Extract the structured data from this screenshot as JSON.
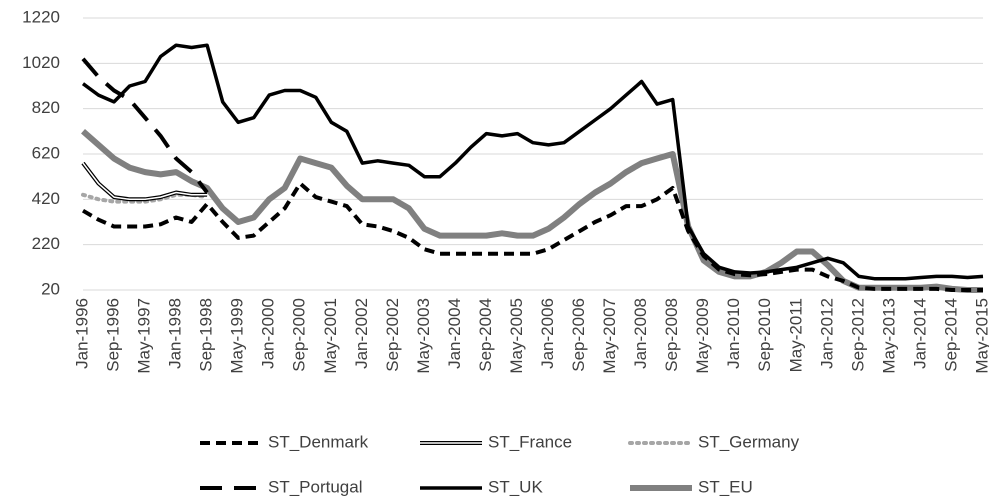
{
  "chart_data": {
    "type": "line",
    "categories": [
      "Jan-1996",
      null,
      "Sep-1996",
      null,
      "May-1997",
      null,
      "Jan-1998",
      null,
      "Sep-1998",
      null,
      "May-1999",
      null,
      "Jan-2000",
      null,
      "Sep-2000",
      null,
      "May-2001",
      null,
      "Jan-2002",
      null,
      "Sep-2002",
      null,
      "May-2003",
      null,
      "Jan-2004",
      null,
      "Sep-2004",
      null,
      "May-2005",
      null,
      "Jan-2006",
      null,
      "Sep-2006",
      null,
      "May-2007",
      null,
      "Jan-2008",
      null,
      "Sep-2008",
      null,
      "May-2009",
      null,
      "Jan-2010",
      null,
      "Sep-2010",
      null,
      "May-2011",
      null,
      "Jan-2012",
      null,
      "Sep-2012",
      null,
      "May-2013",
      null,
      "Jan-2014",
      null,
      "Sep-2014",
      null,
      "May-2015"
    ],
    "ylim": [
      20,
      1220
    ],
    "yticks": [
      20,
      220,
      420,
      620,
      820,
      1020,
      1220
    ],
    "grid": true,
    "legend": "bottom",
    "series": [
      {
        "name": "ST_Denmark",
        "color": "#000000",
        "style": "short-dash",
        "values": [
          370,
          330,
          300,
          300,
          300,
          310,
          340,
          320,
          400,
          320,
          250,
          260,
          320,
          380,
          490,
          430,
          410,
          390,
          310,
          300,
          280,
          250,
          200,
          180,
          180,
          180,
          180,
          180,
          180,
          180,
          200,
          240,
          280,
          320,
          350,
          390,
          390,
          420,
          470,
          280,
          170,
          110,
          90,
          85,
          90,
          100,
          110,
          110,
          80,
          60,
          30,
          25,
          25,
          25,
          25,
          25,
          20,
          20,
          20
        ]
      },
      {
        "name": "ST_France",
        "color": "#000000",
        "style": "double",
        "values": [
          580,
          490,
          430,
          420,
          420,
          430,
          450,
          440,
          440,
          null,
          null,
          null,
          null,
          null,
          null,
          null,
          null,
          null,
          null,
          null,
          null,
          null,
          null,
          null,
          null,
          null,
          null,
          null,
          null,
          null,
          null,
          null,
          null,
          null,
          null,
          null,
          null,
          null,
          null,
          null,
          null,
          null,
          null,
          null,
          null,
          null,
          null,
          null,
          null,
          null,
          null,
          null,
          null,
          null,
          null,
          null,
          null,
          null,
          null
        ]
      },
      {
        "name": "ST_Germany",
        "color": "#a6a6a6",
        "style": "dotted",
        "values": [
          440,
          420,
          410,
          410,
          410,
          420,
          440,
          440,
          430,
          null,
          null,
          null,
          null,
          null,
          null,
          null,
          null,
          null,
          null,
          null,
          null,
          null,
          null,
          null,
          null,
          null,
          null,
          null,
          null,
          null,
          null,
          null,
          null,
          null,
          null,
          null,
          null,
          null,
          null,
          null,
          null,
          null,
          null,
          null,
          null,
          null,
          null,
          null,
          null,
          null,
          null,
          null,
          null,
          null,
          null,
          null,
          null,
          null,
          null
        ]
      },
      {
        "name": "ST_Portugal",
        "color": "#000000",
        "style": "long-dash",
        "values": [
          1040,
          960,
          900,
          860,
          780,
          700,
          600,
          540,
          450,
          null,
          null,
          null,
          null,
          null,
          null,
          null,
          null,
          null,
          null,
          null,
          null,
          null,
          null,
          null,
          null,
          null,
          null,
          null,
          null,
          null,
          null,
          null,
          null,
          null,
          null,
          null,
          null,
          null,
          null,
          null,
          null,
          null,
          null,
          null,
          null,
          null,
          null,
          null,
          null,
          null,
          null,
          null,
          null,
          null,
          null,
          null,
          null,
          null,
          null
        ]
      },
      {
        "name": "ST_UK",
        "color": "#000000",
        "style": "solid",
        "values": [
          930,
          880,
          850,
          920,
          940,
          1050,
          1100,
          1090,
          1100,
          850,
          760,
          780,
          880,
          900,
          900,
          870,
          760,
          720,
          580,
          590,
          580,
          570,
          520,
          520,
          580,
          650,
          710,
          700,
          710,
          670,
          660,
          670,
          720,
          770,
          820,
          880,
          940,
          840,
          860,
          300,
          180,
          120,
          100,
          95,
          100,
          110,
          120,
          140,
          160,
          140,
          80,
          70,
          70,
          70,
          75,
          80,
          80,
          75,
          80
        ]
      },
      {
        "name": "ST_EU",
        "color": "#808080",
        "style": "thick",
        "values": [
          720,
          660,
          600,
          560,
          540,
          530,
          540,
          500,
          470,
          380,
          320,
          340,
          420,
          470,
          600,
          580,
          560,
          480,
          420,
          420,
          420,
          380,
          290,
          260,
          260,
          260,
          260,
          270,
          260,
          260,
          290,
          340,
          400,
          450,
          490,
          540,
          580,
          600,
          620,
          300,
          150,
          100,
          80,
          80,
          100,
          140,
          190,
          190,
          130,
          60,
          30,
          30,
          30,
          30,
          30,
          35,
          25,
          20,
          20
        ]
      }
    ]
  }
}
